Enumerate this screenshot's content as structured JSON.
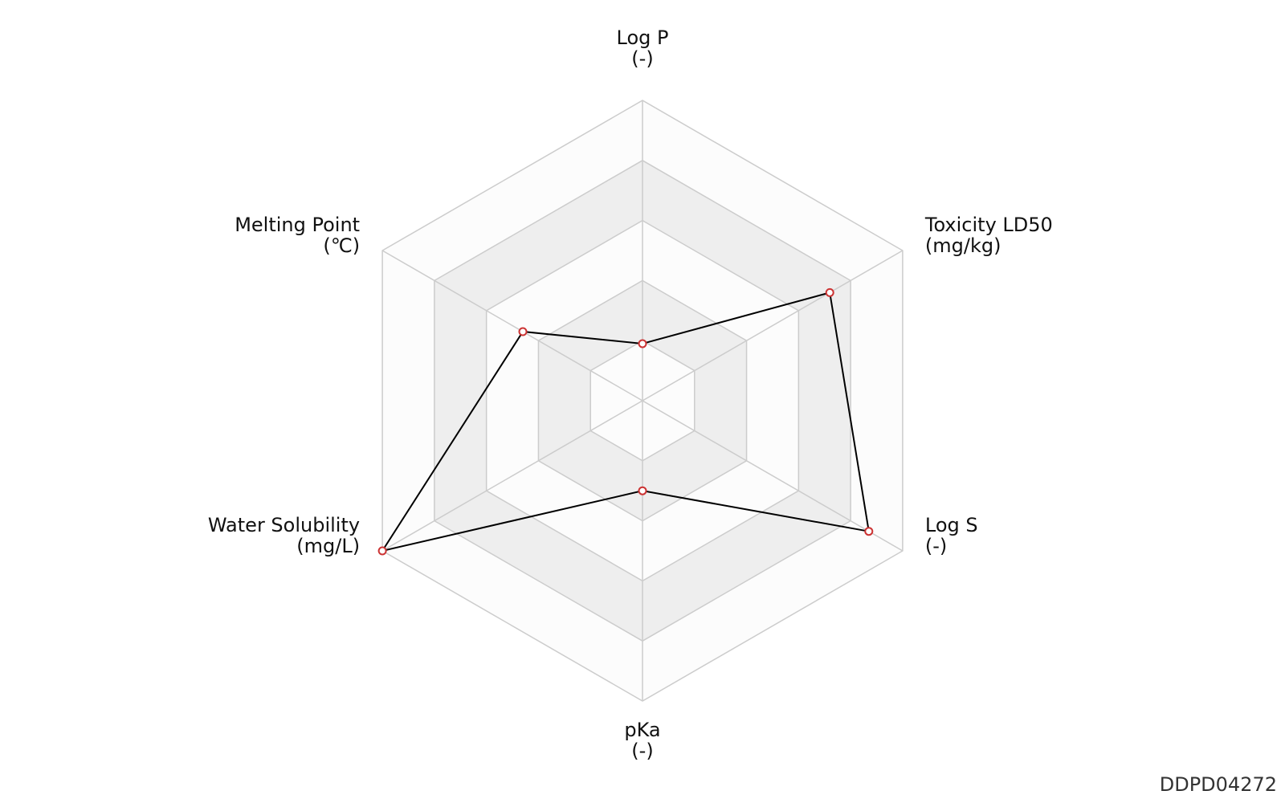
{
  "chart_data": {
    "type": "radar",
    "categories": [
      "Log P",
      "Toxicity LD50",
      "Log S",
      "pKa",
      "Water Solubility",
      "Melting Point"
    ],
    "units": [
      "(-)",
      "(mg/kg)",
      "(-)",
      "(-)",
      "(mg/L)",
      "(℃)"
    ],
    "values": [
      0.19,
      0.72,
      0.87,
      0.3,
      1.0,
      0.46
    ],
    "rlim": [
      0,
      1
    ],
    "rings": 5,
    "color": "#000000",
    "marker_color": "#cc3333",
    "annotation": "DDPD04272"
  }
}
